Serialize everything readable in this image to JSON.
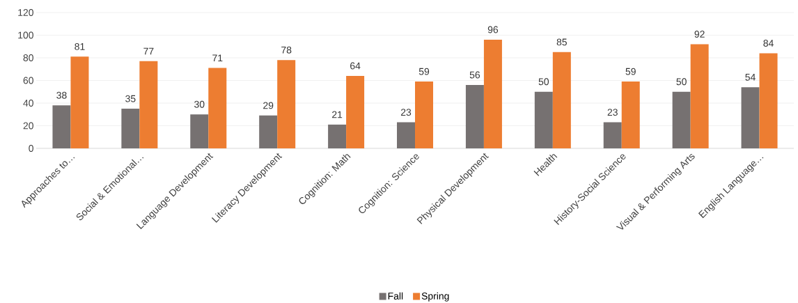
{
  "chart_data": {
    "type": "bar",
    "categories": [
      "Approaches to…",
      "Social & Emotional…",
      "Language Development",
      "Literacy Development",
      "Cognition: Math",
      "Cognition: Science",
      "Physical Development",
      "Health",
      "History-Social Science",
      "Visual & Performing Arts",
      "English Language…"
    ],
    "series": [
      {
        "name": "Fall",
        "color": "#767171",
        "values": [
          38,
          35,
          30,
          29,
          21,
          23,
          56,
          50,
          23,
          50,
          54
        ]
      },
      {
        "name": "Spring",
        "color": "#ed7d31",
        "values": [
          81,
          77,
          71,
          78,
          64,
          59,
          96,
          85,
          59,
          92,
          84
        ]
      }
    ],
    "ylim": [
      0,
      120
    ],
    "yticks": [
      0,
      20,
      40,
      60,
      80,
      100,
      120
    ],
    "grid": "y",
    "legend": "bottom",
    "data_labels": true
  }
}
